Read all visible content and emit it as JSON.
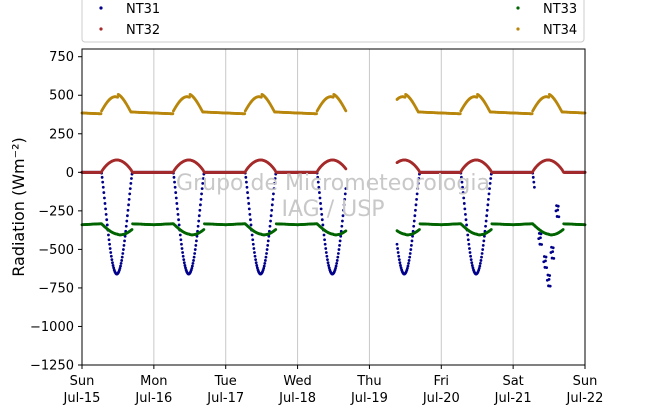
{
  "chart_data": {
    "type": "scatter",
    "ylabel": "Radiation (Wm⁻²)",
    "ylim": [
      -1250,
      800
    ],
    "yticks": [
      750,
      500,
      250,
      0,
      -250,
      -500,
      -750,
      -1000,
      -1250
    ],
    "ytick_labels": [
      "750",
      "500",
      "250",
      "0",
      "−250",
      "−500",
      "−750",
      "−1000",
      "−1250"
    ],
    "xlim": [
      0,
      7
    ],
    "xticks": [
      {
        "day": "Sun",
        "date": "Jul-15"
      },
      {
        "day": "Mon",
        "date": "Jul-16"
      },
      {
        "day": "Tue",
        "date": "Jul-17"
      },
      {
        "day": "Wed",
        "date": "Jul-18"
      },
      {
        "day": "Thu",
        "date": "Jul-19"
      },
      {
        "day": "Fri",
        "date": "Jul-20"
      },
      {
        "day": "Sat",
        "date": "Jul-21"
      },
      {
        "day": "Sun",
        "date": "Jul-22"
      }
    ],
    "grid": "vertical",
    "legend_position": "top",
    "watermark": [
      "Grupo de Micrometeorologia",
      "IAG / USP"
    ],
    "data_gap": [
      3.68,
      4.38
    ],
    "series": [
      {
        "name": "NT31",
        "color": "#00008b",
        "baseline": 0,
        "night": 0,
        "amplitude": -660,
        "note_points": [
          [
            6.38,
            -430
          ],
          [
            6.45,
            -580
          ],
          [
            6.5,
            -700
          ],
          [
            6.55,
            -520
          ],
          [
            6.62,
            -250
          ]
        ]
      },
      {
        "name": "NT32",
        "color": "#a52a2a",
        "baseline": 0,
        "night": 0,
        "amplitude": 80
      },
      {
        "name": "NT33",
        "color": "#006400",
        "baseline": -330,
        "night": -380,
        "amplitude": -80
      },
      {
        "name": "NT34",
        "color": "#b8860b",
        "baseline": 380,
        "night": 370,
        "amplitude": 120
      }
    ],
    "daily_cycle": {
      "sunrise_fraction": 0.27,
      "sunset_fraction": 0.7
    }
  }
}
